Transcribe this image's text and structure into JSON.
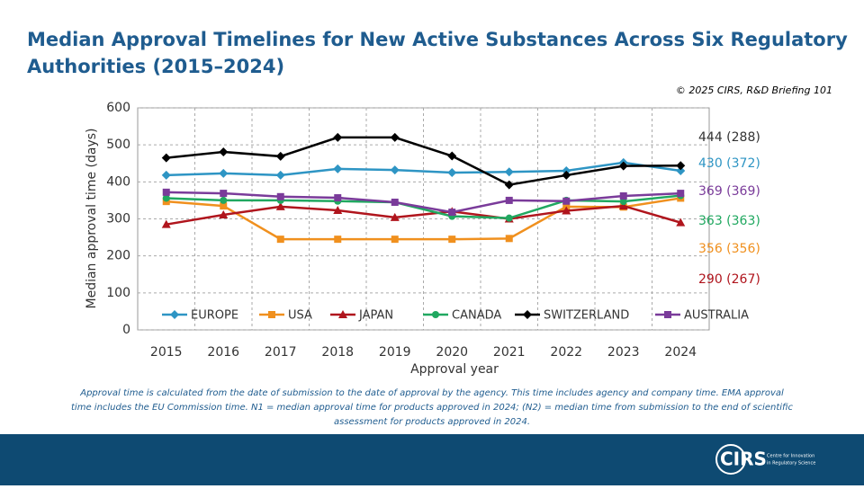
{
  "chart_data": {
    "type": "line",
    "title": "Median Approval Timelines for New Active Substances Across Six Regulatory Authorities (2015–2024)",
    "title_lines": [
      "Median Approval Timelines for New Active Substances Across Six Regulatory",
      "Authorities (2015–2024)"
    ],
    "source": "© 2025 CIRS, R&D Briefing 101",
    "x_label": "Approval year",
    "y_label": "Median approval time (days)",
    "categories": [
      "2015",
      "2016",
      "2017",
      "2018",
      "2019",
      "2020",
      "2021",
      "2022",
      "2023",
      "2024"
    ],
    "ylim": [
      0,
      600
    ],
    "yticks": [
      0,
      100,
      200,
      300,
      400,
      500,
      600
    ],
    "grid": true,
    "series": [
      {
        "name": "EUROPE",
        "color": "#2e95c4",
        "marker": "diamond",
        "values": [
          418,
          423,
          418,
          435,
          432,
          425,
          427,
          430,
          452,
          430
        ]
      },
      {
        "name": "USA",
        "color": "#f0901e",
        "marker": "square",
        "values": [
          347,
          335,
          245,
          245,
          245,
          245,
          247,
          333,
          332,
          356
        ]
      },
      {
        "name": "JAPAN",
        "color": "#b0151d",
        "marker": "triangle",
        "values": [
          285,
          311,
          333,
          323,
          304,
          320,
          300,
          322,
          335,
          290
        ]
      },
      {
        "name": "CANADA",
        "color": "#20a860",
        "marker": "circle",
        "values": [
          356,
          350,
          350,
          348,
          345,
          307,
          302,
          350,
          347,
          363
        ]
      },
      {
        "name": "SWITZERLAND",
        "color": "#000000",
        "marker": "diamond",
        "values": [
          465,
          481,
          469,
          520,
          520,
          470,
          392,
          418,
          443,
          444
        ]
      },
      {
        "name": "AUSTRALIA",
        "color": "#7a3b9a",
        "marker": "square",
        "values": [
          372,
          369,
          360,
          357,
          345,
          318,
          350,
          348,
          362,
          369
        ]
      }
    ],
    "annotations": [
      {
        "text": "444 (288)",
        "color": "#333333"
      },
      {
        "text": "430 (372)",
        "color": "#2e95c4"
      },
      {
        "text": "369 (369)",
        "color": "#7a3b9a"
      },
      {
        "text": "363 (363)",
        "color": "#20a860"
      },
      {
        "text": "356 (356)",
        "color": "#f0901e"
      },
      {
        "text": "290 (267)",
        "color": "#b0151d"
      }
    ],
    "footnote_lines": [
      "Approval time is calculated from the date of submission to the date of approval by the agency. This time includes agency and company time. EMA approval",
      "time includes the EU Commission time. N1 = median approval time for products approved in 2024; (N2) = median time from submission to the end of scientific",
      "assessment for products approved in 2024."
    ],
    "logo": {
      "name": "CIRS",
      "line1": "Centre for Innovation",
      "line2": "in Regulatory Science"
    }
  }
}
